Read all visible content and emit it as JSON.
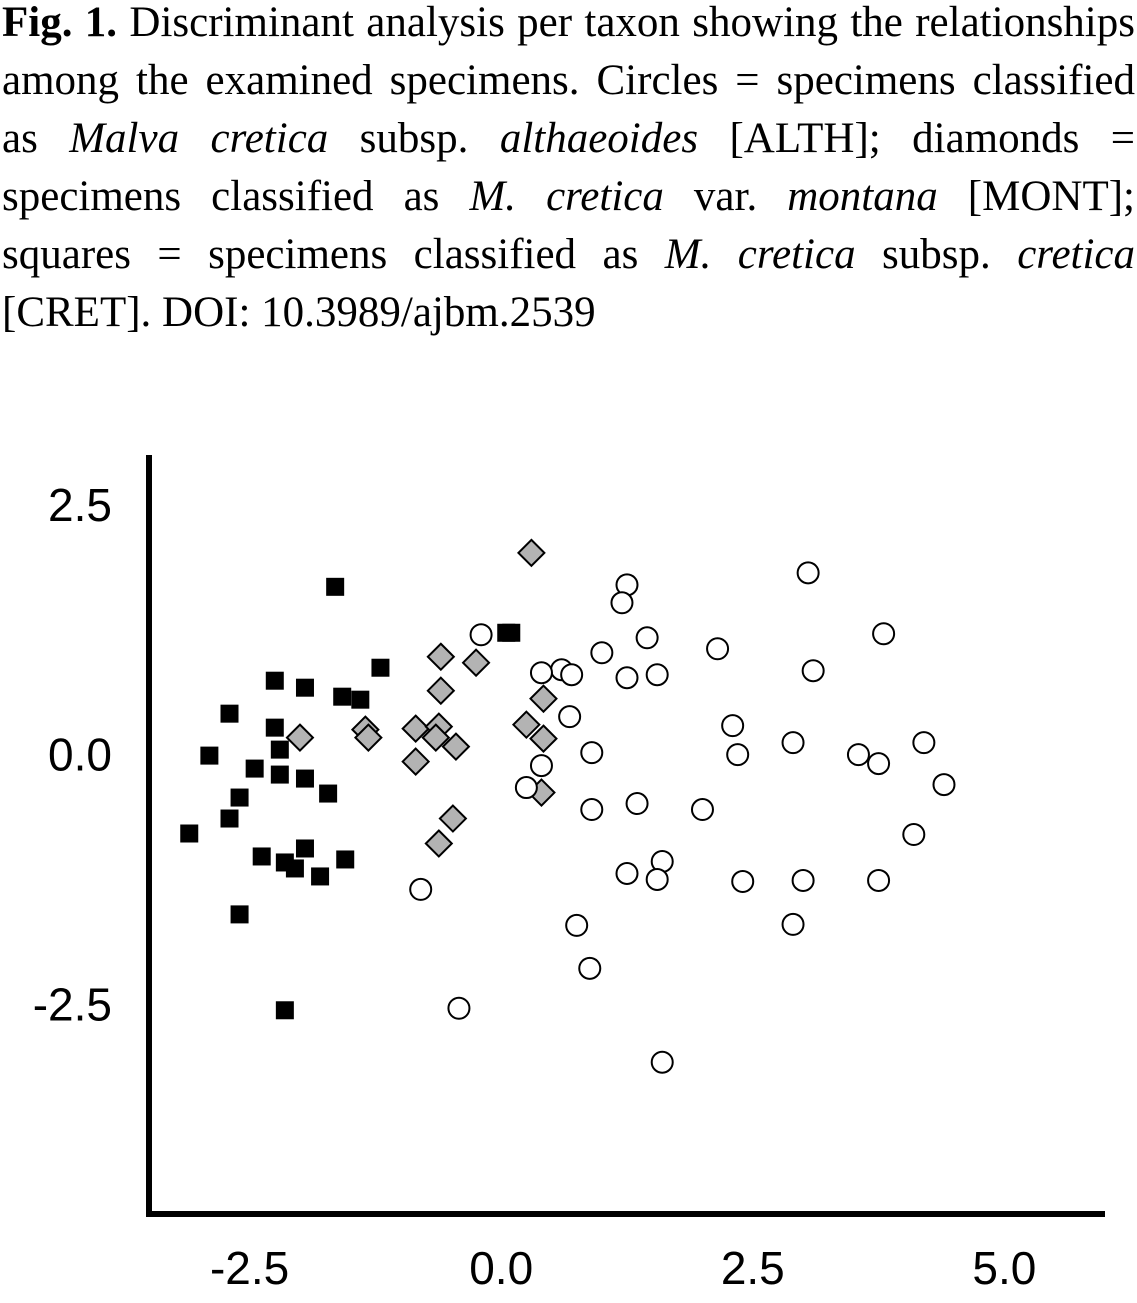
{
  "caption": {
    "fig": "Fig. 1.",
    "t1": " Discriminant analysis per taxon showing the relationships among the examined specimens. Circles = specimens classified as ",
    "i1": "Malva cretica",
    "t2": " subsp. ",
    "i2": "althaeoides",
    "t3": " [ALTH]; diamonds = specimens classified as ",
    "i3": "M. cretica",
    "t4": " var. ",
    "i4": "montana",
    "t5": " [MONT]; squares = specimens classified as ",
    "i5": "M. cretica",
    "t6": " subsp. ",
    "i6": "cretica",
    "t7": " [CRET]. DOI: 10.3989/ajbm.2539"
  },
  "chart_data": {
    "type": "scatter",
    "xlim": [
      -3.5,
      6.0
    ],
    "ylim": [
      -4.6,
      3.0
    ],
    "xticks": [
      -2.5,
      0.0,
      2.5,
      5.0
    ],
    "yticks": [
      -2.5,
      0.0,
      2.5
    ],
    "xtick_labels": [
      "-2.5",
      "0.0",
      "2.5",
      "5.0"
    ],
    "ytick_labels": [
      "-2.5",
      "0.0",
      "2.5"
    ],
    "grid": false,
    "series": [
      {
        "marker": "square",
        "color": "#000000",
        "points": [
          [
            -1.65,
            1.68
          ],
          [
            0.1,
            1.22
          ],
          [
            0.05,
            1.22
          ],
          [
            -1.2,
            0.87
          ],
          [
            -2.25,
            0.74
          ],
          [
            -1.95,
            0.67
          ],
          [
            -1.58,
            0.58
          ],
          [
            -1.4,
            0.55
          ],
          [
            -2.7,
            0.41
          ],
          [
            -2.25,
            0.27
          ],
          [
            -2.2,
            0.05
          ],
          [
            -2.9,
            -0.01
          ],
          [
            -2.45,
            -0.14
          ],
          [
            -2.2,
            -0.2
          ],
          [
            -1.95,
            -0.24
          ],
          [
            -1.72,
            -0.39
          ],
          [
            -2.6,
            -0.43
          ],
          [
            -2.7,
            -0.64
          ],
          [
            -3.1,
            -0.79
          ],
          [
            -2.38,
            -1.02
          ],
          [
            -2.15,
            -1.08
          ],
          [
            -1.95,
            -0.94
          ],
          [
            -2.05,
            -1.14
          ],
          [
            -1.8,
            -1.22
          ],
          [
            -1.55,
            -1.05
          ],
          [
            -2.6,
            -1.6
          ],
          [
            -2.15,
            -2.56
          ]
        ]
      },
      {
        "marker": "diamond",
        "color": "#b3b3b3",
        "points": [
          [
            0.3,
            2.02
          ],
          [
            -0.6,
            0.98
          ],
          [
            -0.25,
            0.92
          ],
          [
            -0.6,
            0.64
          ],
          [
            0.42,
            0.56
          ],
          [
            -2.0,
            0.17
          ],
          [
            -1.35,
            0.25
          ],
          [
            -1.32,
            0.17
          ],
          [
            -0.85,
            0.26
          ],
          [
            -0.62,
            0.28
          ],
          [
            -0.65,
            0.17
          ],
          [
            -0.45,
            0.08
          ],
          [
            -0.85,
            -0.07
          ],
          [
            0.25,
            0.3
          ],
          [
            0.42,
            0.16
          ],
          [
            0.4,
            -0.38
          ],
          [
            -0.48,
            -0.64
          ],
          [
            -0.62,
            -0.89
          ]
        ]
      },
      {
        "marker": "circle",
        "color": "#ffffff",
        "points": [
          [
            3.05,
            1.82
          ],
          [
            1.25,
            1.7
          ],
          [
            1.2,
            1.52
          ],
          [
            -0.2,
            1.2
          ],
          [
            1.45,
            1.17
          ],
          [
            3.8,
            1.21
          ],
          [
            1.0,
            1.02
          ],
          [
            2.15,
            1.06
          ],
          [
            0.6,
            0.85
          ],
          [
            0.4,
            0.82
          ],
          [
            0.7,
            0.8
          ],
          [
            1.25,
            0.77
          ],
          [
            1.55,
            0.8
          ],
          [
            3.1,
            0.84
          ],
          [
            0.68,
            0.38
          ],
          [
            2.3,
            0.29
          ],
          [
            2.9,
            0.12
          ],
          [
            4.2,
            0.12
          ],
          [
            0.9,
            0.02
          ],
          [
            2.35,
            0.0
          ],
          [
            3.55,
            0.0
          ],
          [
            3.75,
            -0.09
          ],
          [
            0.4,
            -0.11
          ],
          [
            4.4,
            -0.3
          ],
          [
            0.25,
            -0.33
          ],
          [
            0.9,
            -0.55
          ],
          [
            1.35,
            -0.49
          ],
          [
            2.0,
            -0.55
          ],
          [
            4.1,
            -0.8
          ],
          [
            1.6,
            -1.07
          ],
          [
            1.25,
            -1.19
          ],
          [
            1.55,
            -1.25
          ],
          [
            2.4,
            -1.27
          ],
          [
            3.0,
            -1.26
          ],
          [
            3.75,
            -1.26
          ],
          [
            -0.8,
            -1.35
          ],
          [
            0.75,
            -1.71
          ],
          [
            2.9,
            -1.7
          ],
          [
            0.88,
            -2.14
          ],
          [
            -0.42,
            -2.54
          ],
          [
            1.6,
            -3.08
          ]
        ]
      }
    ]
  }
}
